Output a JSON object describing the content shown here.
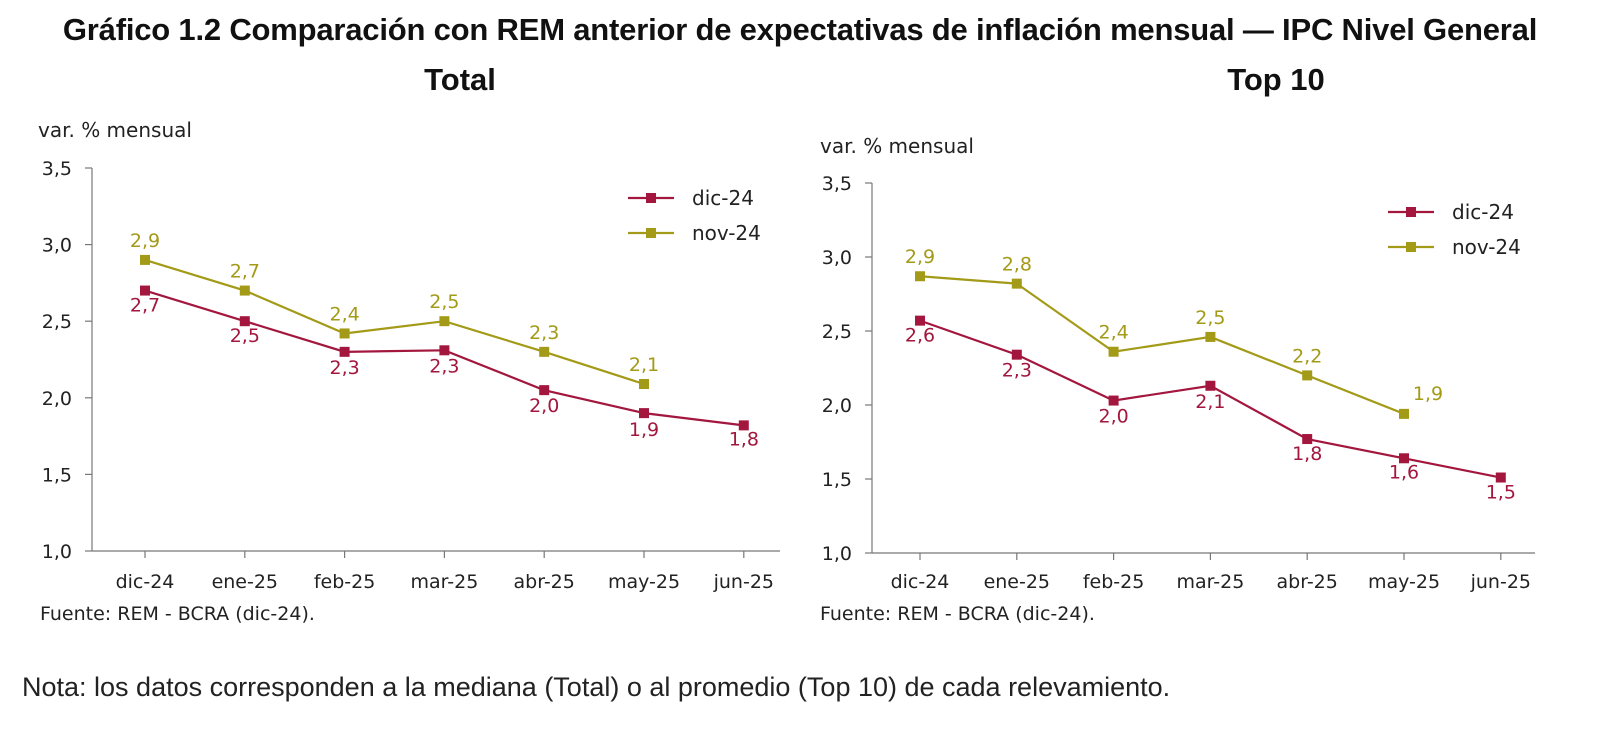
{
  "page": {
    "title": "Gráfico 1.2 Comparación con REM anterior de expectativas de inflación mensual — IPC Nivel General",
    "note": "Nota: los datos corresponden a la mediana (Total) o al promedio (Top 10) de cada relevamiento."
  },
  "colors": {
    "dic24": "#a3173f",
    "nov24": "#a39a17"
  },
  "chart_data": [
    {
      "type": "line",
      "title": "Total",
      "ylabel": "var. % mensual",
      "source": "Fuente: REM - BCRA (dic-24).",
      "categories": [
        "dic-24",
        "ene-25",
        "feb-25",
        "mar-25",
        "abr-25",
        "may-25",
        "jun-25"
      ],
      "ylim": [
        1.0,
        3.5
      ],
      "yticks": [
        1.0,
        1.5,
        2.0,
        2.5,
        3.0,
        3.5
      ],
      "ytick_labels": [
        "1,0",
        "1,5",
        "2,0",
        "2,5",
        "3,0",
        "3,5"
      ],
      "grid": false,
      "legend_position": "top-right",
      "series": [
        {
          "name": "dic-24",
          "color": "#a3173f",
          "values": [
            2.7,
            2.5,
            2.3,
            2.31,
            2.05,
            1.9,
            1.82
          ],
          "labels": [
            "2,7",
            "2,5",
            "2,3",
            "2,3",
            "2,0",
            "1,9",
            "1,8"
          ]
        },
        {
          "name": "nov-24",
          "color": "#a39a17",
          "values": [
            2.9,
            2.7,
            2.42,
            2.5,
            2.3,
            2.09,
            null
          ],
          "labels": [
            "2,9",
            "2,7",
            "2,4",
            "2,5",
            "2,3",
            "2,1",
            null
          ]
        }
      ]
    },
    {
      "type": "line",
      "title": "Top 10",
      "ylabel": "var. % mensual",
      "source": "Fuente: REM - BCRA (dic-24).",
      "categories": [
        "dic-24",
        "ene-25",
        "feb-25",
        "mar-25",
        "abr-25",
        "may-25",
        "jun-25"
      ],
      "ylim": [
        1.0,
        3.5
      ],
      "yticks": [
        1.0,
        1.5,
        2.0,
        2.5,
        3.0,
        3.5
      ],
      "ytick_labels": [
        "1,0",
        "1,5",
        "2,0",
        "2,5",
        "3,0",
        "3,5"
      ],
      "grid": false,
      "legend_position": "top-right",
      "series": [
        {
          "name": "dic-24",
          "color": "#a3173f",
          "values": [
            2.57,
            2.34,
            2.03,
            2.13,
            1.77,
            1.64,
            1.51
          ],
          "labels": [
            "2,6",
            "2,3",
            "2,0",
            "2,1",
            "1,8",
            "1,6",
            "1,5"
          ]
        },
        {
          "name": "nov-24",
          "color": "#a39a17",
          "values": [
            2.87,
            2.82,
            2.36,
            2.46,
            2.2,
            1.94,
            null
          ],
          "labels": [
            "2,9",
            "2,8",
            "2,4",
            "2,5",
            "2,2",
            "1,9",
            null
          ]
        }
      ]
    }
  ]
}
